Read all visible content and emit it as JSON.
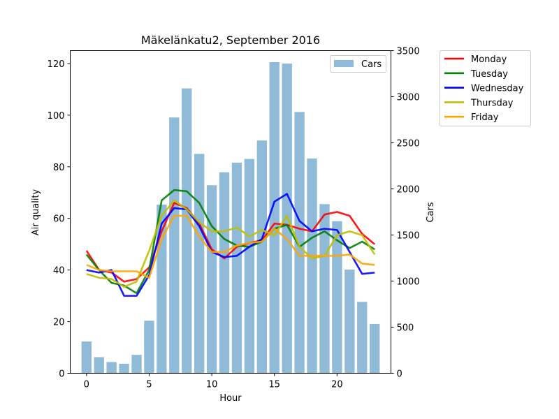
{
  "chart_data": {
    "type": "bar+line",
    "title": "Mäkelänkatu2, September 2016",
    "xlabel": "Hour",
    "ylabel_left": "Air quality",
    "ylabel_right": "Cars",
    "xlim": [
      -1.3,
      24.3
    ],
    "ylim_left": [
      0,
      125
    ],
    "ylim_right": [
      0,
      3500
    ],
    "x_ticks": [
      0,
      5,
      10,
      15,
      20
    ],
    "y_ticks_left": [
      0,
      20,
      40,
      60,
      80,
      100,
      120
    ],
    "y_ticks_right": [
      0,
      500,
      1000,
      1500,
      2000,
      2500,
      3000,
      3500
    ],
    "hours": [
      0,
      1,
      2,
      3,
      4,
      5,
      6,
      7,
      8,
      9,
      10,
      11,
      12,
      13,
      14,
      15,
      16,
      17,
      18,
      19,
      20,
      21,
      22,
      23
    ],
    "bars": {
      "name": "Cars",
      "color": "#8fbbd9",
      "values": [
        345,
        175,
        122,
        103,
        200,
        570,
        1830,
        2775,
        3090,
        2380,
        2040,
        2180,
        2285,
        2325,
        2525,
        3375,
        3360,
        2835,
        2330,
        1835,
        1650,
        1125,
        775,
        535
      ]
    },
    "bar_legend_position": "upper-right",
    "series_legend_position": "outside-right",
    "series": [
      {
        "name": "Monday",
        "color": "#ff0000",
        "values": [
          47.5,
          40,
          39,
          35.5,
          36.5,
          41,
          55,
          66,
          64,
          58,
          48,
          44.5,
          49,
          50.5,
          51.5,
          58,
          57.5,
          56,
          55,
          61.5,
          62.5,
          61,
          54,
          50
        ]
      },
      {
        "name": "Tuesday",
        "color": "#008000",
        "values": [
          46,
          40,
          35,
          34,
          31,
          40,
          67,
          71,
          70.5,
          66,
          57,
          52,
          49.5,
          49,
          51,
          56,
          57.5,
          49,
          52.5,
          55,
          51.5,
          48.5,
          51,
          48
        ]
      },
      {
        "name": "Wednesday",
        "color": "#0000ff",
        "values": [
          40,
          39,
          40,
          30,
          30,
          38,
          58,
          64,
          63.5,
          57,
          47,
          45,
          45.5,
          49,
          52,
          66.5,
          69.5,
          59,
          55,
          56,
          55.5,
          47,
          38.5,
          39
        ]
      },
      {
        "name": "Thursday",
        "color": "#bfbf00",
        "values": [
          38.5,
          37,
          36.5,
          33.5,
          35.5,
          47.5,
          61,
          67,
          63.5,
          58.5,
          55,
          55,
          56.5,
          53,
          55.5,
          53.5,
          61,
          49,
          44.5,
          45.5,
          53.5,
          55,
          53.5,
          46
        ]
      },
      {
        "name": "Friday",
        "color": "#ffa500",
        "values": [
          42,
          40,
          39.5,
          39.5,
          39.5,
          37,
          52,
          61,
          61,
          53,
          47,
          47,
          49.5,
          50.5,
          51,
          56,
          52,
          45.5,
          45.5,
          45.5,
          45.5,
          46,
          42.5,
          42
        ]
      }
    ]
  }
}
